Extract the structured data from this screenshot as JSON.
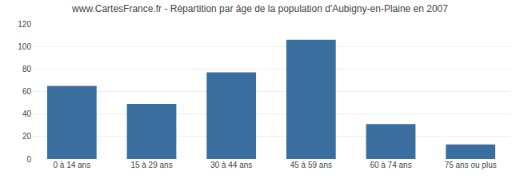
{
  "chart_data": {
    "type": "bar",
    "title": "www.CartesFrance.fr - Répartition par âge de la population d'Aubigny-en-Plaine en 2007",
    "categories": [
      "0 à 14 ans",
      "15 à 29 ans",
      "30 à 44 ans",
      "45 à 59 ans",
      "60 à 74 ans",
      "75 ans ou plus"
    ],
    "values": [
      65,
      49,
      77,
      106,
      31,
      13
    ],
    "color": "#3a6e9e",
    "ylim": [
      0,
      120
    ],
    "yticks": [
      0,
      20,
      40,
      60,
      80,
      100,
      120
    ],
    "grid": true
  }
}
